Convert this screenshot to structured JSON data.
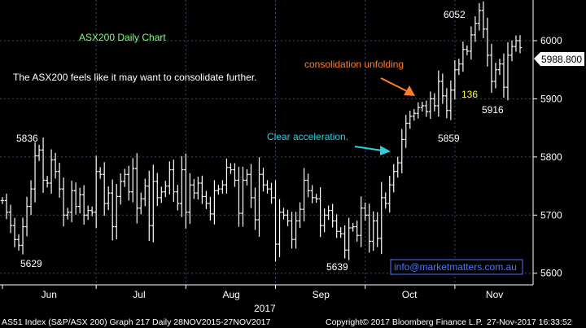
{
  "chart_data": {
    "type": "bar",
    "subtype": "ohlc",
    "title": "ASX200 Daily Chart",
    "subtitle": "The ASX200 feels like it may want to consolidate further.",
    "year_label": "2017",
    "month_labels": [
      "Jun",
      "Jul",
      "Aug",
      "Sep",
      "Oct",
      "Nov"
    ],
    "y_ticks": [
      5600,
      5700,
      5800,
      5900,
      6000
    ],
    "ylim": [
      5580,
      6070
    ],
    "grid": true,
    "last_price": "5988.800",
    "colors": {
      "background": "#000000",
      "bars": "#ffffff",
      "grid": "#3a4a6a",
      "title": "#7fff7f",
      "accent_orange": "#ff7f27",
      "accent_cyan": "#2ed0e0",
      "label_yellow": "#ffff33",
      "email": "#4a78ff"
    },
    "annotations": {
      "high_jun": "5836",
      "low_jun": "5629",
      "low_sep": "5639",
      "low_oct": "5859",
      "peak": "6052",
      "low_nov": "5916",
      "drop": "136",
      "clear_acceleration": "Clear acceleration.",
      "consolidation": "consolidation unfolding",
      "email": "info@marketmatters.com.au"
    },
    "footer": {
      "left": "AS51 Index (S&P/ASX 200) Graph 217  Daily 28NOV2015-27NOV2017",
      "center": "Copyright© 2017 Bloomberg Finance L.P.",
      "right": "27-Nov-2017 16:33:52"
    },
    "closes": [
      5725,
      5705,
      5682,
      5658,
      5648,
      5680,
      5715,
      5745,
      5802,
      5812,
      5760,
      5755,
      5795,
      5775,
      5745,
      5700,
      5705,
      5742,
      5715,
      5735,
      5700,
      5708,
      5705,
      5775,
      5770,
      5720,
      5738,
      5680,
      5732,
      5758,
      5770,
      5740,
      5780,
      5712,
      5728,
      5750,
      5682,
      5758,
      5730,
      5740,
      5750,
      5778,
      5740,
      5720,
      5778,
      5705,
      5752,
      5738,
      5755,
      5732,
      5720,
      5702,
      5742,
      5745,
      5752,
      5782,
      5778,
      5760,
      5703,
      5760,
      5770,
      5730,
      5692,
      5770,
      5752,
      5745,
      5730,
      5650,
      5705,
      5700,
      5690,
      5658,
      5690,
      5710,
      5760,
      5742,
      5730,
      5728,
      5682,
      5700,
      5708,
      5690,
      5672,
      5668,
      5640,
      5678,
      5680,
      5665,
      5712,
      5700,
      5655,
      5690,
      5660,
      5730,
      5720,
      5752,
      5775,
      5790,
      5830,
      5858,
      5870,
      5875,
      5885,
      5888,
      5878,
      5900,
      5888,
      5930,
      5905,
      5880,
      5915,
      5950,
      5960,
      5985,
      5982,
      6010,
      6030,
      6052,
      6020,
      5975,
      5930,
      5950,
      5960,
      5920,
      5975,
      5990,
      6000,
      5988
    ],
    "month_starts": [
      0,
      23,
      45,
      67,
      89,
      111
    ]
  }
}
